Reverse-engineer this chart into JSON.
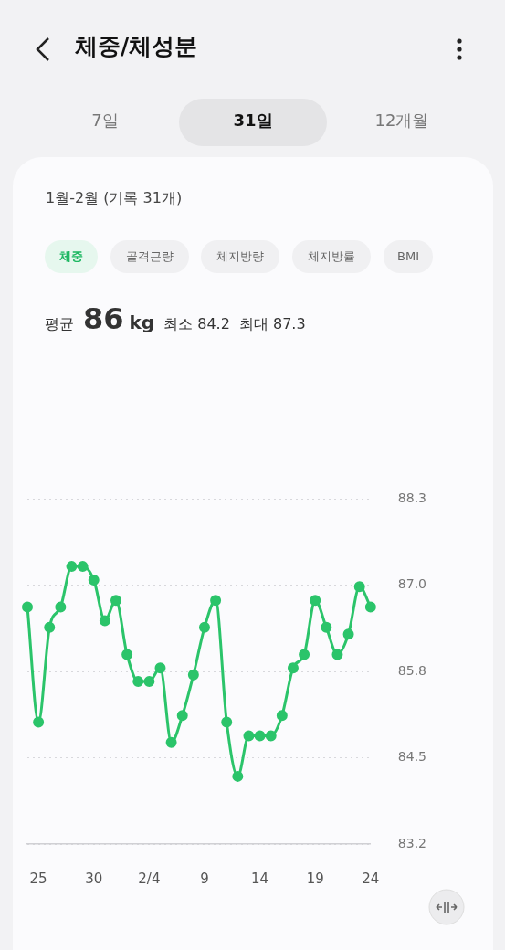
{
  "chart_data": {
    "type": "line",
    "title": "체중/체성분",
    "subtitle": "1월-2월 (기록 31개)",
    "annotations": [
      "7일",
      "31일",
      "12개월",
      "체중",
      "골격근량",
      "체지방량",
      "체지방률",
      "BMI",
      "평균",
      "86",
      "kg",
      "최소 84.2",
      "최대 87.3"
    ],
    "categories": [
      null,
      "25",
      null,
      null,
      null,
      null,
      "30",
      null,
      null,
      null,
      null,
      "2/4",
      null,
      null,
      null,
      null,
      "9",
      null,
      null,
      null,
      null,
      "14",
      null,
      null,
      null,
      null,
      "19",
      null,
      null,
      null,
      null,
      "24"
    ],
    "series": [
      {
        "color": "#2bc46a",
        "values": [
          86.7,
          85.0,
          86.4,
          86.7,
          87.3,
          87.3,
          87.1,
          86.5,
          86.8,
          86.0,
          85.6,
          85.6,
          85.8,
          84.7,
          85.1,
          85.7,
          86.4,
          86.8,
          85.0,
          84.2,
          84.8,
          84.8,
          84.8,
          85.1,
          85.8,
          86.0,
          86.8,
          86.4,
          86.0,
          86.3,
          87.0,
          86.7
        ]
      }
    ],
    "ylim": [
      83.2,
      88.3
    ],
    "yticks": [
      {
        "value": 83.2,
        "label": "83.2"
      },
      {
        "value": 84.475,
        "label": "84.5"
      },
      {
        "value": 85.75,
        "label": "85.8"
      },
      {
        "value": 87.025,
        "label": "87.0"
      },
      {
        "value": 88.3,
        "label": "88.3"
      }
    ],
    "grid": "y",
    "legend": false,
    "marker": "circle",
    "line_style": "solid"
  }
}
